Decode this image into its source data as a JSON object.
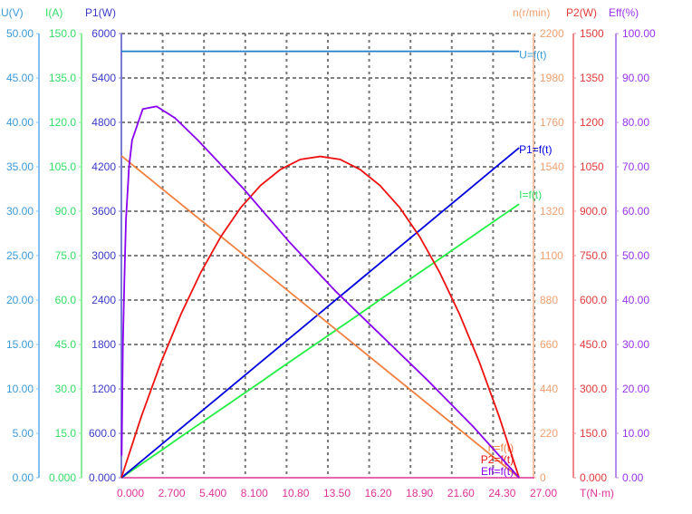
{
  "chart_data": {
    "type": "line",
    "title": "",
    "xlabel": "T(N·m)",
    "xlim": [
      0,
      27
    ],
    "x_ticks": [
      "0.000",
      "2.700",
      "5.400",
      "8.100",
      "10.80",
      "13.50",
      "16.20",
      "18.90",
      "21.60",
      "24.30",
      "27.00"
    ],
    "grid": true,
    "axes": [
      {
        "id": "U",
        "label": "U(V)",
        "side": "left",
        "range": [
          0,
          50
        ],
        "color": "#3a9ad9",
        "line_color": "#80bff0",
        "ticks": [
          "0.00",
          "5.00",
          "10.00",
          "15.00",
          "20.00",
          "25.00",
          "30.00",
          "35.00",
          "40.00",
          "45.00",
          "50.00"
        ]
      },
      {
        "id": "I",
        "label": "I(A)",
        "side": "left",
        "range": [
          0,
          150
        ],
        "color": "#33dd66",
        "line_color": "#88ee99",
        "ticks": [
          "0.000",
          "15.0",
          "30.0",
          "45.0",
          "60.0",
          "75.0",
          "90.0",
          "105.0",
          "120.0",
          "135.0",
          "150.0"
        ]
      },
      {
        "id": "P1",
        "label": "P1(W)",
        "side": "left",
        "range": [
          0,
          6000
        ],
        "color": "#3b3bc8",
        "line_color": "#7a7ad8",
        "ticks": [
          "0.000",
          "600.0",
          "1200",
          "1800",
          "2400",
          "3000",
          "3600",
          "4200",
          "4800",
          "5400",
          "6000"
        ]
      },
      {
        "id": "n",
        "label": "n(r/min)",
        "side": "right",
        "range": [
          0,
          2200
        ],
        "color": "#f0a070",
        "line_color": "#f4c4a4",
        "ticks": [
          "0",
          "220",
          "440",
          "660",
          "880",
          "1100",
          "1320",
          "1540",
          "1760",
          "1980",
          "2200"
        ]
      },
      {
        "id": "P2",
        "label": "P2(W)",
        "side": "right",
        "range": [
          0,
          1500
        ],
        "color": "#e03a3a",
        "line_color": "#f08a8a",
        "ticks": [
          "0.000",
          "150.0",
          "300.0",
          "450.0",
          "600.0",
          "750.0",
          "900.0",
          "1050",
          "1200",
          "1350",
          "1500"
        ]
      },
      {
        "id": "Eff",
        "label": "Eff(%)",
        "side": "right",
        "range": [
          0,
          100
        ],
        "color": "#9933ee",
        "line_color": "#bb88ee",
        "ticks": [
          "0.00",
          "10.00",
          "20.00",
          "30.00",
          "40.00",
          "50.00",
          "60.00",
          "70.00",
          "80.00",
          "90.00",
          "100.00"
        ]
      }
    ],
    "series": [
      {
        "name": "U=f(t)",
        "axis": "U",
        "color": "#1f7fcf",
        "x": [
          0,
          26
        ],
        "y": [
          48.0,
          48.0
        ]
      },
      {
        "name": "I=f(t)",
        "axis": "I",
        "color": "#22ee44",
        "x": [
          0,
          1.3,
          2.6,
          3.9,
          5.2,
          6.5,
          7.8,
          9.1,
          10.4,
          11.7,
          13,
          14.3,
          15.6,
          16.9,
          18.2,
          19.5,
          20.8,
          22.1,
          23.4,
          24.7,
          26
        ],
        "y": [
          0,
          4.6,
          9.2,
          13.9,
          18.5,
          23.1,
          27.7,
          32.3,
          37.0,
          41.6,
          46.2,
          50.8,
          55.4,
          60.1,
          64.7,
          69.3,
          73.9,
          78.5,
          83.2,
          87.8,
          92.4
        ]
      },
      {
        "name": "P1=f(t)",
        "axis": "P1",
        "color": "#0000dd",
        "x": [
          0,
          1.3,
          2.6,
          3.9,
          5.2,
          6.5,
          7.8,
          9.1,
          10.4,
          11.7,
          13,
          14.3,
          15.6,
          16.9,
          18.2,
          19.5,
          20.8,
          22.1,
          23.4,
          24.7,
          26
        ],
        "y": [
          0,
          223,
          446,
          669,
          891,
          1114,
          1337,
          1560,
          1783,
          2005,
          2228,
          2451,
          2674,
          2897,
          3120,
          3342,
          3565,
          3788,
          4011,
          4234,
          4457
        ]
      },
      {
        "name": "n=f(t)",
        "axis": "n",
        "color": "#f08040",
        "x": [
          0,
          26
        ],
        "y": [
          1594,
          0
        ]
      },
      {
        "name": "P2=f(t)",
        "axis": "P2",
        "color": "#ee1111",
        "x": [
          0,
          1.3,
          2.6,
          3.9,
          5.2,
          6.5,
          7.8,
          9.1,
          10.4,
          11.7,
          13,
          14.3,
          15.6,
          16.9,
          18.2,
          19.5,
          20.8,
          22.1,
          23.4,
          24.7,
          26
        ],
        "y": [
          0,
          206,
          391,
          553,
          694,
          814,
          912,
          987,
          1041,
          1075,
          1085,
          1075,
          1041,
          987,
          912,
          814,
          694,
          553,
          391,
          206,
          0
        ]
      },
      {
        "name": "Eff=f(t)",
        "axis": "Eff",
        "color": "#8800ee",
        "x": [
          0.02,
          0.1,
          0.2,
          0.3,
          0.5,
          0.7,
          1.4,
          2.3,
          3.5,
          5.0,
          8.0,
          11.0,
          14.0,
          17.0,
          20.0,
          23.0,
          26.0
        ],
        "y": [
          5,
          30,
          45,
          58,
          70,
          76,
          83,
          83.6,
          81,
          76,
          65,
          53,
          42,
          32,
          22,
          11.5,
          0
        ]
      }
    ],
    "legend": "inline-at-line-ends"
  }
}
